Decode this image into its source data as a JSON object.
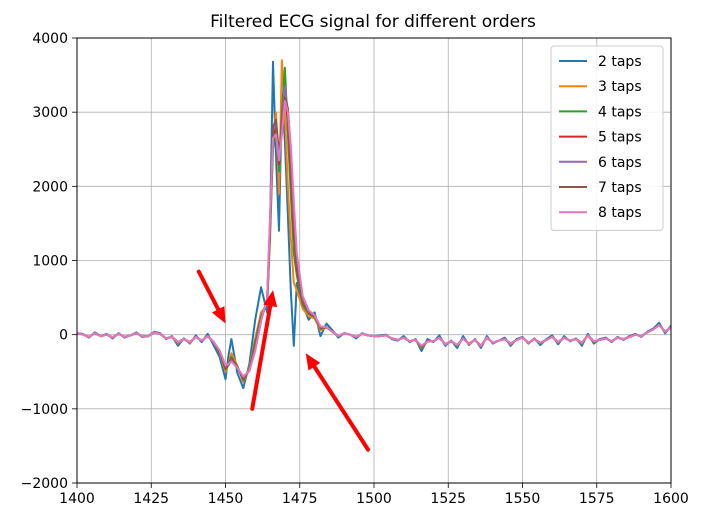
{
  "chart_data": {
    "type": "line",
    "title": "Filtered ECG signal for different orders",
    "xlabel": "",
    "ylabel": "",
    "xlim": [
      1400,
      1600
    ],
    "ylim": [
      -2000,
      4000
    ],
    "xticks": [
      1400,
      1425,
      1450,
      1475,
      1500,
      1525,
      1550,
      1575,
      1600
    ],
    "yticks": [
      -2000,
      -1000,
      0,
      1000,
      2000,
      3000,
      4000
    ],
    "xtick_labels": [
      "1400",
      "1425",
      "1450",
      "1475",
      "1500",
      "1525",
      "1550",
      "1575",
      "1600"
    ],
    "ytick_labels": [
      "−2000",
      "−1000",
      "0",
      "1000",
      "2000",
      "3000",
      "4000"
    ],
    "grid": true,
    "legend_position": "top-right",
    "x": [
      1400,
      1402,
      1404,
      1406,
      1408,
      1410,
      1412,
      1414,
      1416,
      1418,
      1420,
      1422,
      1424,
      1426,
      1428,
      1430,
      1432,
      1434,
      1436,
      1438,
      1440,
      1442,
      1444,
      1446,
      1448,
      1450,
      1451,
      1452,
      1454,
      1456,
      1458,
      1460,
      1462,
      1464,
      1465,
      1466,
      1467,
      1468,
      1469,
      1470,
      1471,
      1472,
      1473,
      1474,
      1476,
      1478,
      1480,
      1482,
      1484,
      1486,
      1488,
      1490,
      1492,
      1494,
      1496,
      1498,
      1500,
      1502,
      1504,
      1506,
      1508,
      1510,
      1512,
      1514,
      1516,
      1518,
      1520,
      1522,
      1524,
      1526,
      1528,
      1530,
      1532,
      1534,
      1536,
      1538,
      1540,
      1542,
      1544,
      1546,
      1548,
      1550,
      1552,
      1554,
      1556,
      1558,
      1560,
      1562,
      1564,
      1566,
      1568,
      1570,
      1572,
      1574,
      1576,
      1578,
      1580,
      1582,
      1584,
      1586,
      1588,
      1590,
      1592,
      1594,
      1596,
      1598,
      1600
    ],
    "series": [
      {
        "name": "2 taps",
        "color": "#1f77b4",
        "values": [
          20,
          10,
          -40,
          30,
          -20,
          10,
          -50,
          20,
          -40,
          -10,
          30,
          -30,
          -20,
          40,
          20,
          -60,
          -20,
          -150,
          -50,
          -120,
          -10,
          -100,
          10,
          -140,
          -300,
          -600,
          -280,
          -60,
          -520,
          -720,
          -400,
          200,
          640,
          300,
          1500,
          3680,
          2400,
          1400,
          3200,
          2600,
          1600,
          600,
          -150,
          700,
          400,
          200,
          300,
          -20,
          150,
          60,
          -40,
          20,
          0,
          -50,
          20,
          -10,
          -20,
          -10,
          0,
          -60,
          -80,
          -20,
          -100,
          -60,
          -220,
          -60,
          -100,
          -10,
          -150,
          -80,
          -180,
          -20,
          -140,
          -60,
          -180,
          -20,
          -120,
          -80,
          -40,
          -150,
          -60,
          -30,
          -120,
          -50,
          -140,
          -60,
          -10,
          -130,
          -20,
          -90,
          -50,
          -150,
          10,
          -120,
          -60,
          -40,
          -100,
          -30,
          -70,
          -20,
          10,
          -30,
          40,
          80,
          160,
          20,
          120
        ]
      },
      {
        "name": "3 taps",
        "color": "#ff7f0e",
        "values": [
          15,
          5,
          -30,
          20,
          -20,
          0,
          -40,
          10,
          -30,
          -10,
          20,
          -20,
          -20,
          30,
          10,
          -50,
          -30,
          -120,
          -60,
          -110,
          -30,
          -80,
          -20,
          -100,
          -250,
          -500,
          -400,
          -250,
          -420,
          -640,
          -450,
          -50,
          300,
          400,
          1300,
          2600,
          3000,
          1900,
          3700,
          3000,
          2000,
          1300,
          700,
          600,
          350,
          250,
          220,
          60,
          100,
          40,
          -20,
          20,
          0,
          -30,
          10,
          -10,
          -20,
          -20,
          -10,
          -50,
          -70,
          -40,
          -90,
          -70,
          -180,
          -90,
          -90,
          -40,
          -130,
          -90,
          -150,
          -50,
          -130,
          -70,
          -160,
          -40,
          -110,
          -80,
          -60,
          -130,
          -70,
          -40,
          -110,
          -60,
          -120,
          -70,
          -30,
          -110,
          -40,
          -80,
          -60,
          -120,
          -10,
          -100,
          -70,
          -50,
          -90,
          -40,
          -60,
          -30,
          0,
          -20,
          30,
          70,
          130,
          40,
          100
        ]
      },
      {
        "name": "4 taps",
        "color": "#2ca02c",
        "values": [
          15,
          5,
          -30,
          20,
          -20,
          0,
          -35,
          10,
          -30,
          -10,
          20,
          -20,
          -20,
          30,
          10,
          -50,
          -30,
          -110,
          -60,
          -100,
          -30,
          -80,
          -20,
          -100,
          -240,
          -470,
          -400,
          -300,
          -430,
          -620,
          -470,
          -100,
          250,
          420,
          1400,
          2500,
          2800,
          2200,
          3000,
          3600,
          2700,
          1900,
          1100,
          800,
          400,
          280,
          240,
          80,
          100,
          40,
          -20,
          20,
          0,
          -30,
          10,
          -10,
          -20,
          -20,
          -10,
          -50,
          -70,
          -40,
          -90,
          -70,
          -170,
          -90,
          -90,
          -40,
          -130,
          -90,
          -150,
          -50,
          -120,
          -70,
          -150,
          -40,
          -110,
          -80,
          -60,
          -120,
          -70,
          -40,
          -110,
          -60,
          -120,
          -70,
          -30,
          -110,
          -40,
          -80,
          -60,
          -110,
          -10,
          -100,
          -70,
          -50,
          -90,
          -40,
          -60,
          -30,
          0,
          -20,
          30,
          70,
          130,
          40,
          100
        ]
      },
      {
        "name": "5 taps",
        "color": "#d62728",
        "values": [
          15,
          5,
          -30,
          20,
          -20,
          0,
          -35,
          10,
          -30,
          -10,
          20,
          -20,
          -20,
          30,
          10,
          -50,
          -30,
          -100,
          -60,
          -100,
          -30,
          -80,
          -20,
          -100,
          -230,
          -450,
          -410,
          -320,
          -440,
          -600,
          -480,
          -150,
          220,
          450,
          1450,
          2700,
          2800,
          2300,
          2900,
          3300,
          2900,
          2200,
          1400,
          900,
          450,
          300,
          250,
          90,
          100,
          40,
          -20,
          20,
          0,
          -30,
          10,
          -10,
          -20,
          -20,
          -10,
          -50,
          -70,
          -40,
          -90,
          -70,
          -160,
          -90,
          -90,
          -40,
          -130,
          -90,
          -140,
          -50,
          -120,
          -70,
          -150,
          -40,
          -110,
          -80,
          -60,
          -120,
          -70,
          -40,
          -110,
          -60,
          -110,
          -70,
          -30,
          -100,
          -40,
          -80,
          -60,
          -110,
          -10,
          -90,
          -70,
          -50,
          -90,
          -40,
          -60,
          -30,
          0,
          -20,
          30,
          70,
          130,
          40,
          100
        ]
      },
      {
        "name": "6 taps",
        "color": "#9467bd",
        "values": [
          15,
          5,
          -30,
          20,
          -20,
          0,
          -35,
          10,
          -30,
          -10,
          20,
          -20,
          -20,
          30,
          10,
          -50,
          -30,
          -100,
          -60,
          -100,
          -30,
          -80,
          -20,
          -100,
          -220,
          -430,
          -410,
          -340,
          -450,
          -580,
          -490,
          -180,
          200,
          470,
          1500,
          2750,
          2850,
          2400,
          2800,
          3350,
          3000,
          2400,
          1600,
          1000,
          480,
          310,
          260,
          100,
          100,
          40,
          -20,
          20,
          0,
          -30,
          10,
          -10,
          -20,
          -20,
          -10,
          -50,
          -70,
          -40,
          -90,
          -70,
          -160,
          -90,
          -90,
          -40,
          -130,
          -90,
          -140,
          -50,
          -120,
          -70,
          -150,
          -40,
          -110,
          -80,
          -60,
          -120,
          -70,
          -40,
          -110,
          -60,
          -110,
          -70,
          -30,
          -100,
          -40,
          -80,
          -60,
          -110,
          -10,
          -90,
          -70,
          -50,
          -90,
          -40,
          -60,
          -30,
          0,
          -20,
          30,
          70,
          130,
          40,
          100
        ]
      },
      {
        "name": "7 taps",
        "color": "#8c564b",
        "values": [
          15,
          5,
          -30,
          20,
          -20,
          0,
          -35,
          10,
          -30,
          -10,
          20,
          -20,
          -20,
          30,
          10,
          -50,
          -30,
          -100,
          -60,
          -100,
          -30,
          -80,
          -20,
          -100,
          -220,
          -420,
          -410,
          -350,
          -450,
          -570,
          -490,
          -200,
          190,
          480,
          1550,
          2800,
          2900,
          2450,
          2750,
          3200,
          3050,
          2500,
          1700,
          1050,
          500,
          320,
          260,
          100,
          100,
          40,
          -20,
          20,
          0,
          -30,
          10,
          -10,
          -20,
          -20,
          -10,
          -50,
          -70,
          -40,
          -90,
          -70,
          -160,
          -90,
          -90,
          -40,
          -130,
          -90,
          -140,
          -50,
          -120,
          -70,
          -150,
          -40,
          -110,
          -80,
          -60,
          -120,
          -70,
          -40,
          -110,
          -60,
          -110,
          -70,
          -30,
          -100,
          -40,
          -80,
          -60,
          -110,
          -10,
          -90,
          -70,
          -50,
          -90,
          -40,
          -60,
          -30,
          0,
          -20,
          30,
          70,
          130,
          40,
          100
        ]
      },
      {
        "name": "8 taps",
        "color": "#e377c2",
        "values": [
          15,
          5,
          -30,
          20,
          -20,
          0,
          -35,
          10,
          -30,
          -10,
          20,
          -20,
          -20,
          30,
          10,
          -50,
          -30,
          -100,
          -60,
          -100,
          -30,
          -80,
          -20,
          -100,
          -210,
          -410,
          -400,
          -360,
          -450,
          -560,
          -490,
          -220,
          180,
          490,
          1600,
          2650,
          2700,
          2350,
          2700,
          3150,
          3000,
          2550,
          1800,
          1100,
          520,
          330,
          260,
          110,
          100,
          40,
          -20,
          20,
          0,
          -30,
          10,
          -10,
          -20,
          -20,
          -10,
          -50,
          -70,
          -40,
          -90,
          -70,
          -150,
          -90,
          -90,
          -40,
          -130,
          -90,
          -140,
          -50,
          -120,
          -70,
          -150,
          -40,
          -110,
          -80,
          -60,
          -120,
          -70,
          -40,
          -110,
          -60,
          -110,
          -70,
          -30,
          -100,
          -40,
          -80,
          -60,
          -110,
          -10,
          -90,
          -70,
          -50,
          -90,
          -40,
          -60,
          -30,
          0,
          -20,
          30,
          70,
          130,
          40,
          100
        ]
      }
    ],
    "annotations": [
      {
        "type": "arrow",
        "color": "#ff0000",
        "from": [
          1441,
          850
        ],
        "to": [
          1450,
          150
        ]
      },
      {
        "type": "arrow",
        "color": "#ff0000",
        "from": [
          1459,
          -1000
        ],
        "to": [
          1466,
          600
        ]
      },
      {
        "type": "arrow",
        "color": "#ff0000",
        "from": [
          1498,
          -1550
        ],
        "to": [
          1477,
          -250
        ]
      }
    ]
  }
}
